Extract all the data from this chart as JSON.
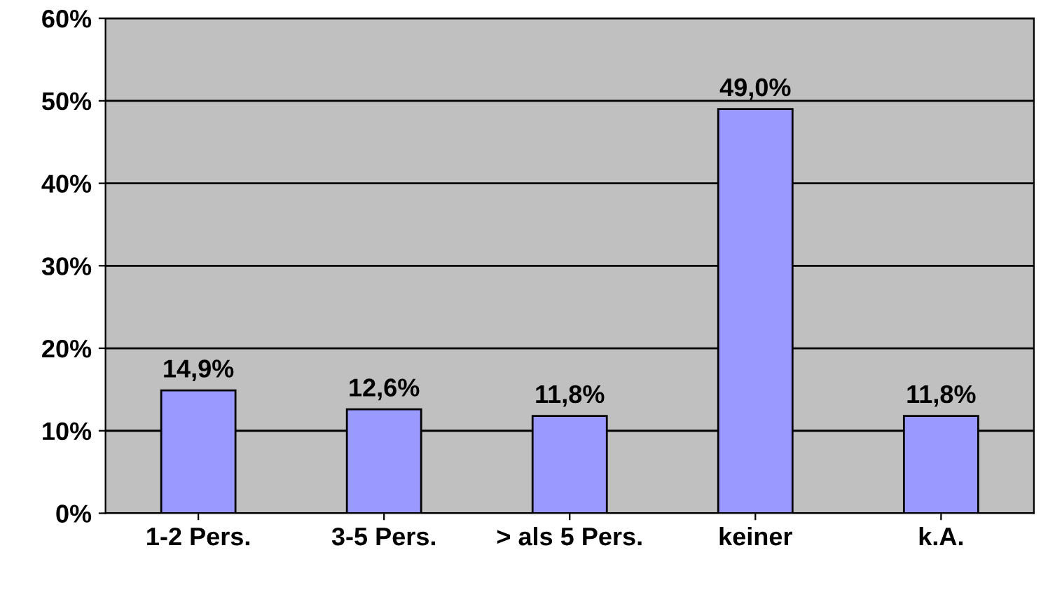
{
  "chart_data": {
    "type": "bar",
    "categories": [
      "1-2 Pers.",
      "3-5 Pers.",
      "> als 5 Pers.",
      "keiner",
      "k.A."
    ],
    "values": [
      14.9,
      12.6,
      11.8,
      49.0,
      11.8
    ],
    "value_labels": [
      "14,9%",
      "12,6%",
      "11,8%",
      "49,0%",
      "11,8%"
    ],
    "color": "#9999ff",
    "ylim": [
      0,
      60
    ],
    "yticks": [
      {
        "value": 0,
        "label": "0%"
      },
      {
        "value": 10,
        "label": "10%"
      },
      {
        "value": 20,
        "label": "20%"
      },
      {
        "value": 30,
        "label": "30%"
      },
      {
        "value": 40,
        "label": "40%"
      },
      {
        "value": 50,
        "label": "50%"
      },
      {
        "value": 60,
        "label": "60%"
      }
    ],
    "grid": "y"
  }
}
